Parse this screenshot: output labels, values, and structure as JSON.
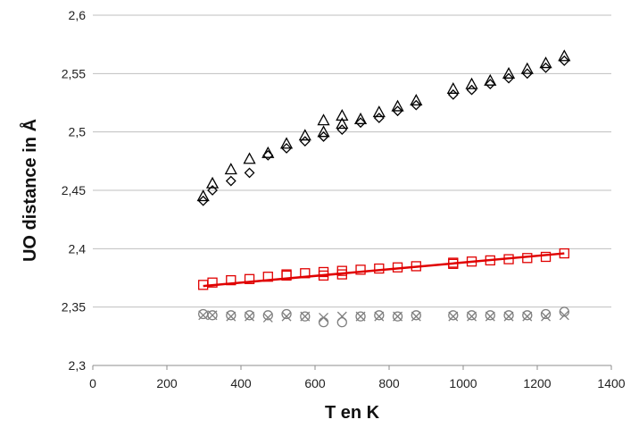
{
  "chart_data": {
    "type": "scatter",
    "xlabel": "T en K",
    "ylabel": "UO distance in Å",
    "xlim": [
      0,
      1400
    ],
    "ylim": [
      2.3,
      2.6
    ],
    "x_ticks": [
      0,
      200,
      400,
      600,
      800,
      1000,
      1200,
      1400
    ],
    "x_tick_labels": [
      "0",
      "200",
      "400",
      "600",
      "800",
      "1000",
      "1200",
      "1400"
    ],
    "y_ticks": [
      2.3,
      2.35,
      2.4,
      2.45,
      2.5,
      2.55,
      2.6
    ],
    "y_tick_labels": [
      "2,3",
      "2,35",
      "2,4",
      "2,45",
      "2,5",
      "2,55",
      "2,6"
    ],
    "grid": "horizontal",
    "legend": "none",
    "series": [
      {
        "marker": "triangle",
        "color": "#000000",
        "points": [
          [
            298,
            2.445
          ],
          [
            323,
            2.456
          ],
          [
            373,
            2.468
          ],
          [
            423,
            2.477
          ],
          [
            473,
            2.482
          ],
          [
            523,
            2.49
          ],
          [
            573,
            2.497
          ],
          [
            623,
            2.51
          ],
          [
            623,
            2.5
          ],
          [
            673,
            2.514
          ],
          [
            673,
            2.507
          ],
          [
            723,
            2.511
          ],
          [
            773,
            2.517
          ],
          [
            823,
            2.522
          ],
          [
            873,
            2.527
          ],
          [
            973,
            2.537
          ],
          [
            1023,
            2.541
          ],
          [
            1073,
            2.544
          ],
          [
            1123,
            2.55
          ],
          [
            1173,
            2.554
          ],
          [
            1223,
            2.559
          ],
          [
            1273,
            2.565
          ]
        ]
      },
      {
        "marker": "diamond",
        "color": "#000000",
        "points": [
          [
            298,
            2.441
          ],
          [
            323,
            2.45
          ],
          [
            373,
            2.458
          ],
          [
            423,
            2.465
          ],
          [
            473,
            2.48
          ],
          [
            523,
            2.486
          ],
          [
            573,
            2.492
          ],
          [
            623,
            2.496
          ],
          [
            673,
            2.502
          ],
          [
            723,
            2.508
          ],
          [
            773,
            2.512
          ],
          [
            823,
            2.518
          ],
          [
            873,
            2.523
          ],
          [
            973,
            2.532
          ],
          [
            1023,
            2.536
          ],
          [
            1073,
            2.541
          ],
          [
            1123,
            2.546
          ],
          [
            1173,
            2.55
          ],
          [
            1223,
            2.555
          ],
          [
            1273,
            2.561
          ]
        ]
      },
      {
        "marker": "square",
        "color": "#e00000",
        "points": [
          [
            298,
            2.369
          ],
          [
            323,
            2.371
          ],
          [
            373,
            2.373
          ],
          [
            423,
            2.374
          ],
          [
            473,
            2.376
          ],
          [
            523,
            2.377
          ],
          [
            523,
            2.378
          ],
          [
            573,
            2.379
          ],
          [
            623,
            2.377
          ],
          [
            623,
            2.38
          ],
          [
            673,
            2.378
          ],
          [
            673,
            2.381
          ],
          [
            723,
            2.382
          ],
          [
            773,
            2.383
          ],
          [
            823,
            2.384
          ],
          [
            873,
            2.385
          ],
          [
            973,
            2.387
          ],
          [
            973,
            2.388
          ],
          [
            1023,
            2.389
          ],
          [
            1073,
            2.39
          ],
          [
            1123,
            2.391
          ],
          [
            1173,
            2.392
          ],
          [
            1223,
            2.393
          ],
          [
            1273,
            2.396
          ]
        ],
        "trendline": {
          "x": [
            298,
            1273
          ],
          "y": [
            2.368,
            2.396
          ]
        }
      },
      {
        "marker": "circle",
        "color": "#7f7f7f",
        "points": [
          [
            298,
            2.344
          ],
          [
            323,
            2.343
          ],
          [
            373,
            2.343
          ],
          [
            423,
            2.343
          ],
          [
            473,
            2.343
          ],
          [
            523,
            2.344
          ],
          [
            573,
            2.342
          ],
          [
            623,
            2.337
          ],
          [
            673,
            2.337
          ],
          [
            723,
            2.342
          ],
          [
            773,
            2.343
          ],
          [
            823,
            2.342
          ],
          [
            873,
            2.343
          ],
          [
            973,
            2.343
          ],
          [
            1023,
            2.343
          ],
          [
            1073,
            2.343
          ],
          [
            1123,
            2.343
          ],
          [
            1173,
            2.343
          ],
          [
            1223,
            2.344
          ],
          [
            1273,
            2.346
          ]
        ]
      },
      {
        "marker": "cross",
        "color": "#7f7f7f",
        "points": [
          [
            298,
            2.343
          ],
          [
            323,
            2.343
          ],
          [
            373,
            2.342
          ],
          [
            423,
            2.342
          ],
          [
            473,
            2.341
          ],
          [
            523,
            2.342
          ],
          [
            573,
            2.342
          ],
          [
            623,
            2.341
          ],
          [
            673,
            2.342
          ],
          [
            723,
            2.342
          ],
          [
            773,
            2.342
          ],
          [
            823,
            2.342
          ],
          [
            873,
            2.342
          ],
          [
            973,
            2.342
          ],
          [
            1023,
            2.342
          ],
          [
            1073,
            2.342
          ],
          [
            1123,
            2.342
          ],
          [
            1173,
            2.342
          ],
          [
            1223,
            2.342
          ],
          [
            1273,
            2.343
          ]
        ]
      }
    ]
  }
}
